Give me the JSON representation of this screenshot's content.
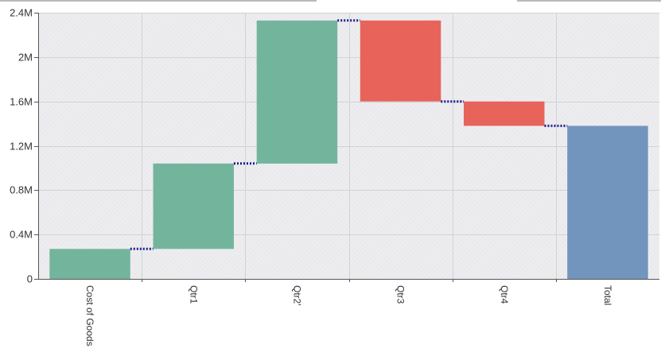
{
  "chart_data": {
    "type": "bar",
    "subtype": "waterfall",
    "title": "",
    "xlabel": "",
    "ylabel": "",
    "categories": [
      "Cost of Goods",
      "Qtr1",
      "Qtr2'",
      "Qtr3",
      "Qtr4",
      "Total"
    ],
    "steps": [
      {
        "category": "Cost of Goods",
        "start": 0,
        "end": 270000,
        "kind": "increase"
      },
      {
        "category": "Qtr1",
        "start": 270000,
        "end": 1040000,
        "kind": "increase"
      },
      {
        "category": "Qtr2'",
        "start": 1040000,
        "end": 2330000,
        "kind": "increase"
      },
      {
        "category": "Qtr3",
        "start": 2330000,
        "end": 1600000,
        "kind": "decrease"
      },
      {
        "category": "Qtr4",
        "start": 1600000,
        "end": 1380000,
        "kind": "decrease"
      },
      {
        "category": "Total",
        "start": 0,
        "end": 1380000,
        "kind": "total"
      }
    ],
    "ylim": [
      0,
      2400000
    ],
    "yticks": [
      {
        "value": 0,
        "label": "0"
      },
      {
        "value": 400000,
        "label": "0.4M"
      },
      {
        "value": 800000,
        "label": "0.8M"
      },
      {
        "value": 1200000,
        "label": "1.2M"
      },
      {
        "value": 1600000,
        "label": "1.6M"
      },
      {
        "value": 2000000,
        "label": "2M"
      },
      {
        "value": 2400000,
        "label": "2.4M"
      }
    ],
    "grid": true,
    "connectors": true,
    "colors": {
      "increase": "#73b59c",
      "decrease": "#e8635a",
      "total": "#7295be",
      "connector": "#1d1d8a",
      "grid": "#d2d2d2",
      "plot_background": "#ededf0"
    }
  }
}
